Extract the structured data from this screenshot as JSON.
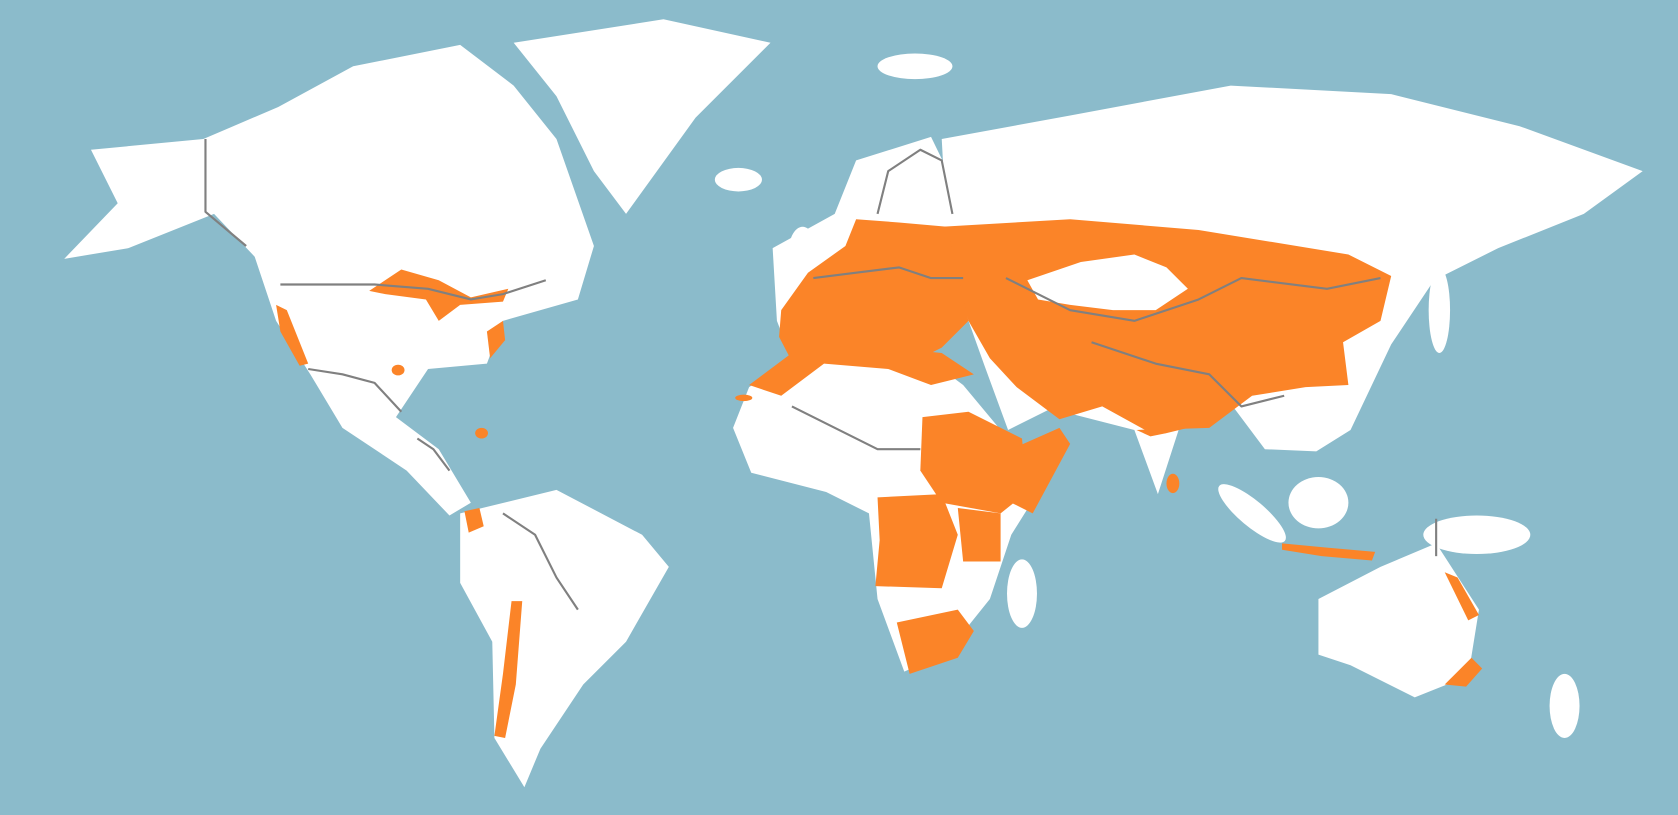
{
  "colors": {
    "ocean": "#8bbbcb",
    "land": "#ffffff",
    "highlight": "#fb8428",
    "border": "#808080"
  },
  "highlighted_regions": [
    "eurasia-belt",
    "europe",
    "north-africa-coast",
    "sudan-ethiopia",
    "yemen-somalia",
    "central-africa",
    "east-africa",
    "south-africa",
    "great-lakes-us",
    "us-west-coast",
    "us-east-coast",
    "us-central-spot",
    "hispaniola",
    "ecuador",
    "chile",
    "india-south",
    "sri-lanka",
    "java-lesser-sunda",
    "australia-east",
    "australia-southeast",
    "canary-islands"
  ]
}
